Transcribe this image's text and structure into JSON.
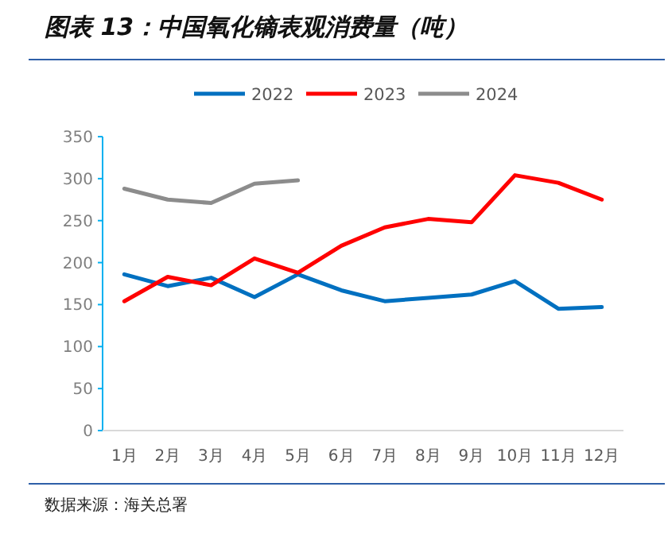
{
  "chart_data": {
    "type": "line",
    "title": "图表 13：中国氧化镝表观消费量（吨）",
    "categories": [
      "1月",
      "2月",
      "3月",
      "4月",
      "5月",
      "6月",
      "7月",
      "8月",
      "9月",
      "10月",
      "11月",
      "12月"
    ],
    "series": [
      {
        "name": "2022",
        "color": "#0070c0",
        "values": [
          186,
          172,
          182,
          159,
          186,
          167,
          154,
          158,
          162,
          178,
          145,
          147
        ]
      },
      {
        "name": "2023",
        "color": "#ff0000",
        "values": [
          154,
          183,
          173,
          205,
          188,
          220,
          242,
          252,
          248,
          304,
          295,
          275
        ]
      },
      {
        "name": "2024",
        "color": "#8c8c8c",
        "values": [
          288,
          275,
          271,
          294,
          298,
          null,
          null,
          null,
          null,
          null,
          null,
          null
        ]
      }
    ],
    "ylim": [
      0,
      350
    ],
    "yticks": [
      0,
      50,
      100,
      150,
      200,
      250,
      300,
      350
    ],
    "legend": "top",
    "annotations": [
      "数据来源：海关总署"
    ]
  }
}
